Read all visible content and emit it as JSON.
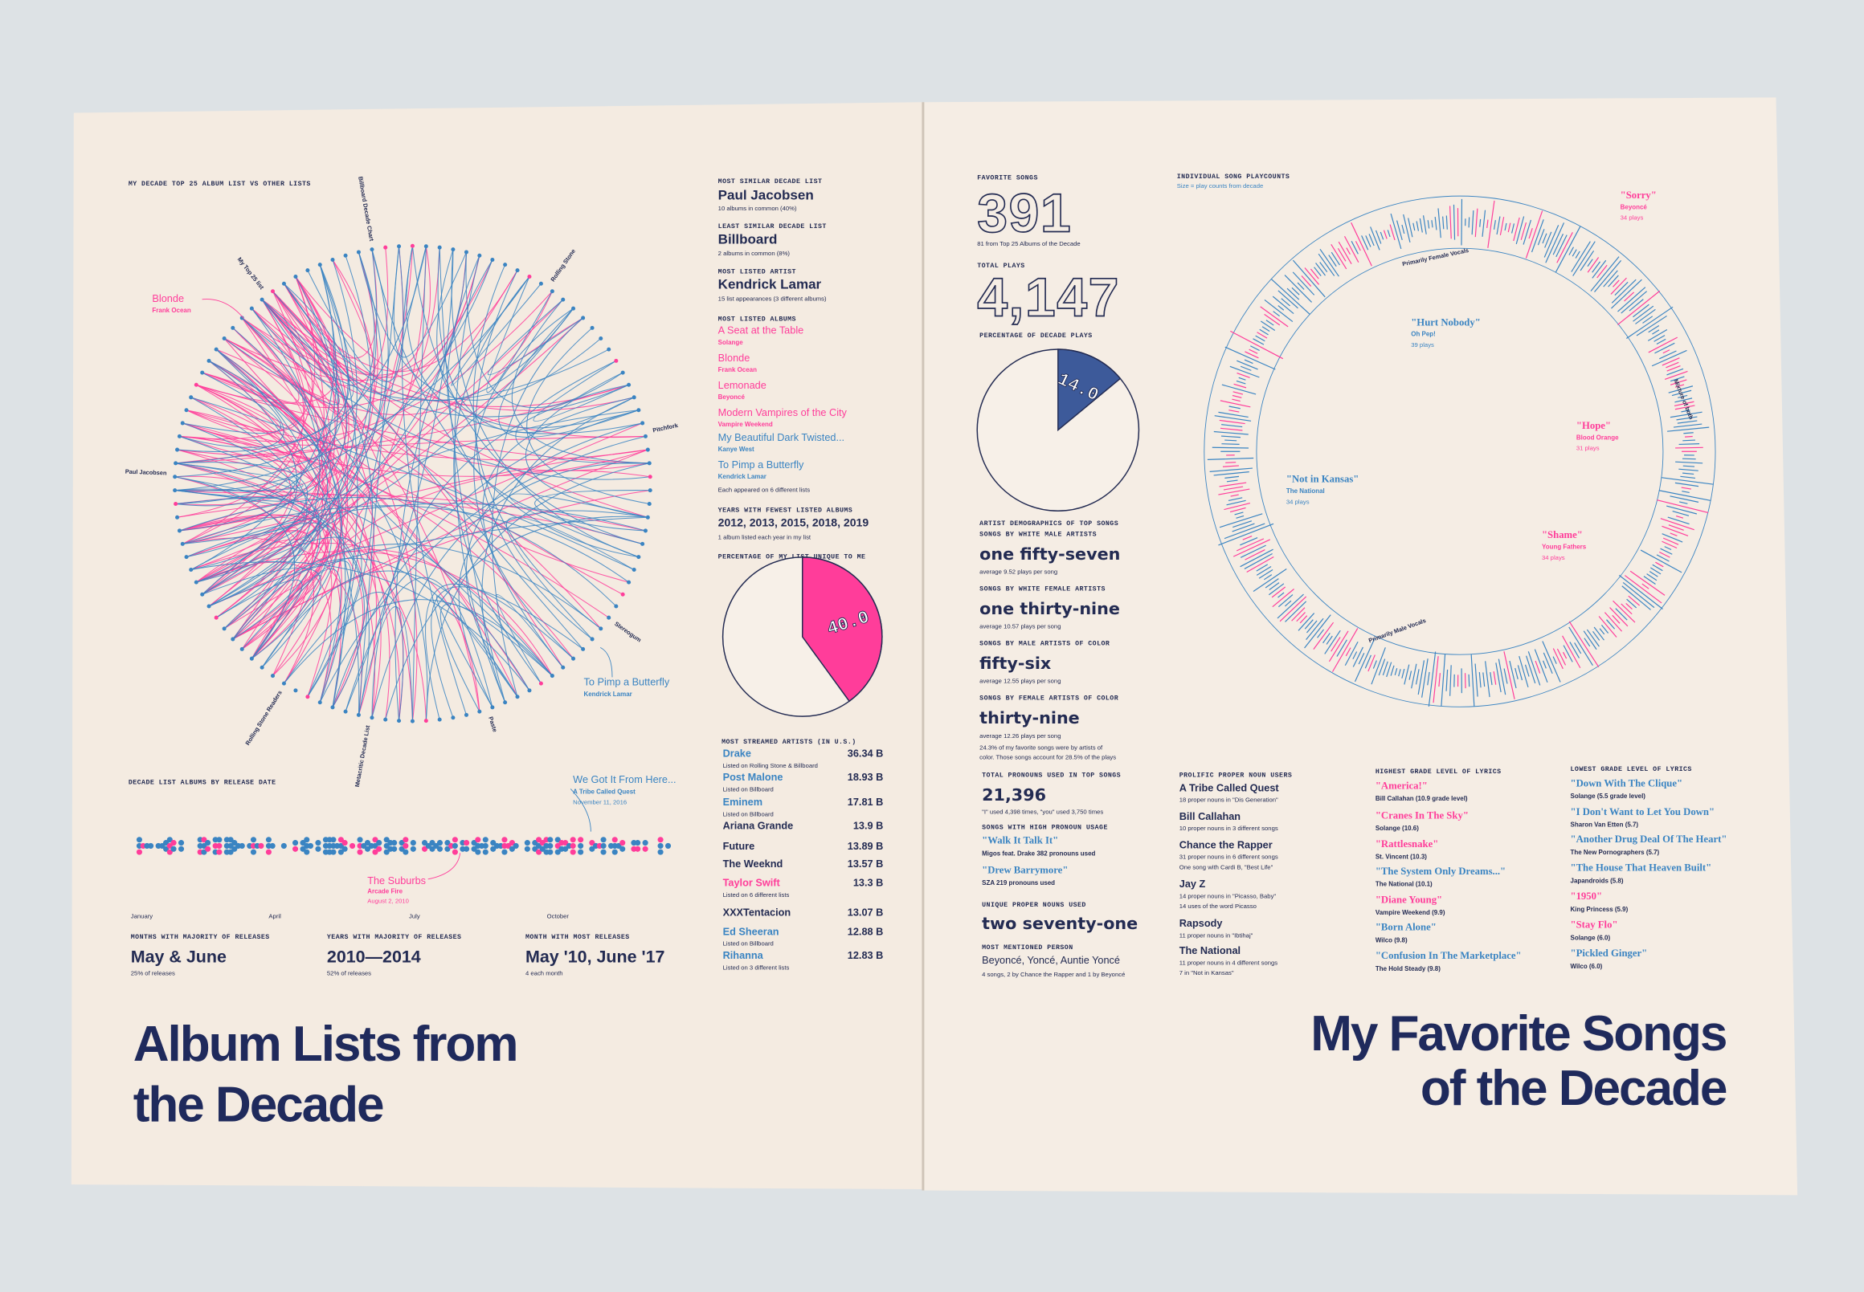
{
  "left": {
    "chord": {
      "title": "MY DECADE TOP 25 ALBUM LIST VS OTHER LISTS",
      "ring_labels": [
        "Billboard Decade Chart",
        "Rolling Stone",
        "Pitchfork",
        "Stereogum",
        "Paste",
        "Metacritic Decade List",
        "Rolling Stone Readers",
        "Paul Jacobsen",
        "My Top 25 list"
      ],
      "annotations": [
        {
          "title": "Blonde",
          "artist": "Frank Ocean"
        },
        {
          "title": "To Pimp a Butterfly",
          "artist": "Kendrick Lamar"
        }
      ]
    },
    "facts": [
      {
        "label": "MOST SIMILAR DECADE LIST",
        "value": "Paul Jacobsen",
        "note": "10 albums in common (40%)"
      },
      {
        "label": "LEAST SIMILAR DECADE LIST",
        "value": "Billboard",
        "note": "2 albums in common (8%)"
      },
      {
        "label": "MOST LISTED ARTIST",
        "value": "Kendrick Lamar",
        "note": "15 list appearances (3 different albums)"
      }
    ],
    "most_listed": {
      "label": "MOST LISTED ALBUMS",
      "albums": [
        {
          "title": "A Seat at the Table",
          "artist": "Solange"
        },
        {
          "title": "Blonde",
          "artist": "Frank Ocean"
        },
        {
          "title": "Lemonade",
          "artist": "Beyoncé"
        },
        {
          "title": "Modern Vampires of the City",
          "artist": "Vampire Weekend"
        },
        {
          "title": "My Beautiful Dark Twisted...",
          "artist": "Kanye West"
        },
        {
          "title": "To Pimp a Butterfly",
          "artist": "Kendrick Lamar"
        }
      ],
      "note": "Each appeared on 6 different lists"
    },
    "fewest": {
      "label": "YEARS WITH FEWEST LISTED ALBUMS",
      "value": "2012, 2013, 2015, 2018, 2019",
      "note": "1 album listed each year in my list"
    },
    "pie": {
      "title": "PERCENTAGE OF MY LIST UNIQUE TO ME",
      "value": 40,
      "value_label": "40.0"
    },
    "streamed": {
      "title": "MOST STREAMED ARTISTS (IN U.S.)",
      "rows": [
        {
          "name": "Drake",
          "value": "36.34 B",
          "note": "Listed on Rolling Stone & Billboard"
        },
        {
          "name": "Post Malone",
          "value": "18.93 B",
          "note": "Listed on Billboard"
        },
        {
          "name": "Eminem",
          "value": "17.81 B",
          "note": "Listed on Billboard"
        },
        {
          "name": "Ariana Grande",
          "value": "13.9 B"
        },
        {
          "name": "Future",
          "value": "13.89 B"
        },
        {
          "name": "The Weeknd",
          "value": "13.57 B"
        },
        {
          "name": "Taylor Swift",
          "value": "13.3 B",
          "note": "Listed on 6 different lists"
        },
        {
          "name": "XXXTentacion",
          "value": "13.07 B"
        },
        {
          "name": "Ed Sheeran",
          "value": "12.88 B",
          "note": "Listed on Billboard"
        },
        {
          "name": "Rihanna",
          "value": "12.83 B",
          "note": "Listed on 3 different lists"
        }
      ]
    },
    "timeline": {
      "title": "DECADE LIST ALBUMS BY RELEASE DATE",
      "months": [
        "January",
        "April",
        "July",
        "October"
      ],
      "annotations": [
        {
          "title": "We Got It From Here...",
          "artist": "A Tribe Called Quest",
          "date": "November 11, 2016"
        },
        {
          "title": "The Suburbs",
          "artist": "Arcade Fire",
          "date": "August 2, 2010"
        }
      ]
    },
    "stats": [
      {
        "label": "MONTHS WITH MAJORITY OF RELEASES",
        "value": "May & June",
        "note": "25% of releases"
      },
      {
        "label": "YEARS WITH MAJORITY OF RELEASES",
        "value": "2010—2014",
        "note": "52% of releases"
      },
      {
        "label": "MONTH WITH MOST RELEASES",
        "value": "May '10, June '17",
        "note": "4 each month"
      }
    ],
    "title": [
      "Album Lists from",
      "the Decade"
    ]
  },
  "right": {
    "favorite_songs": {
      "label": "FAVORITE SONGS",
      "value": "391",
      "note": "81 from Top 25 Albums of the Decade"
    },
    "total_plays": {
      "label": "TOTAL PLAYS",
      "value": "4,147"
    },
    "pie": {
      "title": "PERCENTAGE OF DECADE PLAYS",
      "value": 14,
      "value_label": "14.0"
    },
    "demographics": {
      "title": "ARTIST DEMOGRAPHICS OF TOP SONGS",
      "groups": [
        {
          "label": "SONGS BY WHITE MALE ARTISTS",
          "value": "one fifty-seven",
          "note": "average 9.52 plays per song"
        },
        {
          "label": "SONGS BY WHITE FEMALE ARTISTS",
          "value": "one thirty-nine",
          "note": "average 10.57 plays per song"
        },
        {
          "label": "SONGS BY MALE ARTISTS OF COLOR",
          "value": "fifty-six",
          "note": "average 12.55 plays per song"
        },
        {
          "label": "SONGS BY FEMALE ARTISTS OF COLOR",
          "value": "thirty-nine",
          "note": "average 12.26 plays per song"
        }
      ],
      "note": [
        "24.3% of my favorite songs were by artists of",
        "color. Those songs account for 28.5% of the plays"
      ]
    },
    "pronouns": {
      "label": "TOTAL PRONOUNS USED IN TOP SONGS",
      "value": "21,396",
      "note": "\"I\" used 4,398 times, \"you\" used 3,750 times"
    },
    "high_pronoun": {
      "label": "SONGS WITH HIGH PRONOUN USAGE",
      "songs": [
        {
          "title": "\"Walk It Talk It\"",
          "detail": "Migos feat. Drake   382 pronouns used"
        },
        {
          "title": "\"Drew Barrymore\"",
          "detail": "SZA   219 pronouns used"
        }
      ]
    },
    "unique_nouns": {
      "label": "UNIQUE PROPER NOUNS USED",
      "value": "two seventy-one"
    },
    "person": {
      "label": "MOST MENTIONED PERSON",
      "value": "Beyoncé, Yoncé, Auntie Yoncé",
      "note": "4 songs, 2 by Chance the Rapper and 1 by Beyoncé"
    },
    "prolific": {
      "label": "PROLIFIC PROPER NOUN USERS",
      "rows": [
        {
          "name": "A Tribe Called Quest",
          "notes": [
            "18 proper nouns in \"Dis Generation\""
          ]
        },
        {
          "name": "Bill Callahan",
          "notes": [
            "10 proper nouns in 3 different songs"
          ]
        },
        {
          "name": "Chance the Rapper",
          "notes": [
            "31 proper nouns in 6 different songs",
            "One song with Cardi B, \"Best Life\""
          ]
        },
        {
          "name": "Jay Z",
          "notes": [
            "14 proper nouns in \"Picasso, Baby\"",
            "14 uses of the word Picasso"
          ]
        },
        {
          "name": "Rapsody",
          "notes": [
            "11 proper nouns in \"Ibtihaj\""
          ]
        },
        {
          "name": "The National",
          "notes": [
            "11 proper nouns in 4 different songs",
            "7 in \"Not in Kansas\""
          ]
        }
      ]
    },
    "highest": {
      "label": "HIGHEST GRADE LEVEL OF LYRICS",
      "songs": [
        {
          "title": "\"America!\"",
          "artist": "Bill Callahan (10.9 grade level)"
        },
        {
          "title": "\"Cranes In The Sky\"",
          "artist": "Solange (10.6)"
        },
        {
          "title": "\"Rattlesnake\"",
          "artist": "St. Vincent (10.3)"
        },
        {
          "title": "\"The System Only Dreams...\"",
          "artist": "The National (10.1)"
        },
        {
          "title": "\"Diane Young\"",
          "artist": "Vampire Weekend (9.9)"
        },
        {
          "title": "\"Born Alone\"",
          "artist": "Wilco (9.8)"
        },
        {
          "title": "\"Confusion In The Marketplace\"",
          "artist": "The Hold Steady (9.8)"
        }
      ]
    },
    "lowest": {
      "label": "LOWEST GRADE LEVEL OF LYRICS",
      "songs": [
        {
          "title": "\"Down With The Clique\"",
          "artist": "Solange (5.5 grade level)"
        },
        {
          "title": "\"I Don't Want to Let You Down\"",
          "artist": "Sharon Van Etten (5.7)"
        },
        {
          "title": "\"Another Drug Deal Of The Heart\"",
          "artist": "The New Pornographers (5.7)"
        },
        {
          "title": "\"The House That Heaven Built\"",
          "artist": "Japandroids (5.8)"
        },
        {
          "title": "\"1950\"",
          "artist": "King Princess (5.9)"
        },
        {
          "title": "\"Stay Flo\"",
          "artist": "Solange (6.0)"
        },
        {
          "title": "\"Pickled Ginger\"",
          "artist": "Wilco (6.0)"
        }
      ]
    },
    "ring": {
      "title": "INDIVIDUAL SONG PLAYCOUNTS",
      "subtitle": "Size = play counts from decade",
      "labels": [
        "Primarily Female Vocals",
        "Mixture of both",
        "Primarily Male Vocals"
      ],
      "annotations": [
        {
          "title": "\"Sorry\"",
          "artist": "Beyoncé",
          "plays": "34 plays"
        },
        {
          "title": "\"Hurt Nobody\"",
          "artist": "Oh Pep!",
          "plays": "39 plays"
        },
        {
          "title": "\"Hope\"",
          "artist": "Blood Orange",
          "plays": "31 plays"
        },
        {
          "title": "\"Not in Kansas\"",
          "artist": "The National",
          "plays": "34 plays"
        },
        {
          "title": "\"Shame\"",
          "artist": "Young Fathers",
          "plays": "34 plays"
        }
      ]
    },
    "title": [
      "My Favorite Songs",
      "of the Decade"
    ]
  }
}
